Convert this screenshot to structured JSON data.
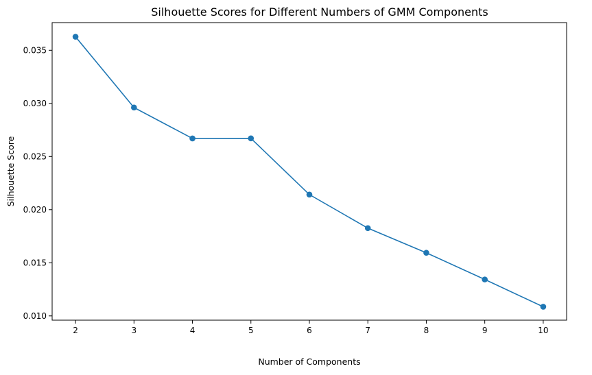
{
  "chart_data": {
    "type": "line",
    "title": "Silhouette Scores for Different Numbers of GMM Components",
    "xlabel": "Number of Components",
    "ylabel": "Silhouette Score",
    "x": [
      2,
      3,
      4,
      5,
      6,
      7,
      8,
      9,
      10
    ],
    "series": [
      {
        "values": [
          0.03627,
          0.02961,
          0.0267,
          0.02671,
          0.02142,
          0.01826,
          0.01594,
          0.01343,
          0.01086
        ]
      }
    ],
    "xticks": [
      2,
      3,
      4,
      5,
      6,
      7,
      8,
      9,
      10
    ],
    "yticks": [
      0.01,
      0.015,
      0.02,
      0.025,
      0.03,
      0.035
    ],
    "ytick_labels": [
      "0.010",
      "0.015",
      "0.020",
      "0.025",
      "0.030",
      "0.035"
    ],
    "xlim": [
      1.6,
      10.4
    ],
    "ylim": [
      0.0096,
      0.0376
    ],
    "grid": false,
    "marker": "circle",
    "color": "#1f77b4"
  }
}
